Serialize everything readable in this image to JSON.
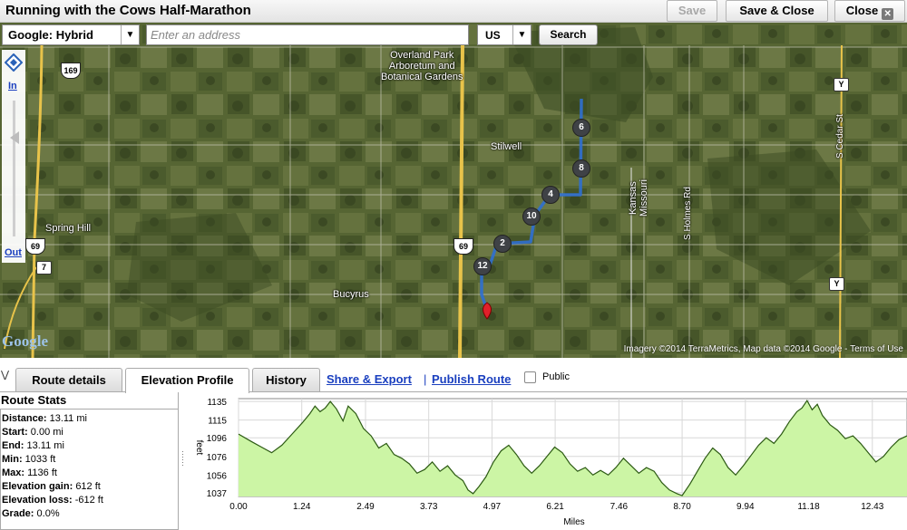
{
  "window": {
    "title": "Running with the Cows Half-Marathon",
    "save_label": "Save",
    "save_close_label": "Save & Close",
    "close_label": "Close",
    "close_icon_glyph": "✕"
  },
  "map_toolbar": {
    "map_type": "Google: Hybrid",
    "address_placeholder": "Enter an address",
    "address_value": "",
    "region": "US",
    "search_label": "Search",
    "dropdown_glyph": "▼"
  },
  "zoom": {
    "in_label": "In",
    "out_label": "Out",
    "level_fraction": 0.27
  },
  "map": {
    "place_labels": {
      "overland_park": [
        "Overland Park",
        "Arboretum and",
        "Botanical Gardens"
      ],
      "stilwell": "Stilwell",
      "spring_hill": "Spring Hill",
      "bucyrus": "Bucyrus",
      "missouri": "Missouri",
      "kansas": "Kansas",
      "s_holmes_rd": "S Holmes Rd",
      "s_cedar_st": "S Cedar St"
    },
    "road_shields": {
      "us169": "169",
      "us69_left": "69",
      "us69_mid": "69",
      "k7": "7",
      "y_top": "Y",
      "y_mid": "Y"
    },
    "mile_markers": [
      "2",
      "4",
      "6",
      "8",
      "10",
      "12"
    ],
    "attribution": "Imagery ©2014  TerraMetrics, Map data ©2014  Google - Terms of Use",
    "google_logo": "Google",
    "colors": {
      "route": "#2f6fd0",
      "start_pin": "#e0202a"
    }
  },
  "tabs": {
    "route_details": "Route details",
    "elevation_profile": "Elevation Profile",
    "history": "History",
    "share_export": "Share & Export",
    "separator": "|",
    "publish_route": "Publish Route",
    "public_label": "Public",
    "collapse_glyph": "⋁"
  },
  "stats": {
    "title": "Route Stats",
    "rows": [
      {
        "label": "Distance:",
        "value": "13.11 mi"
      },
      {
        "label": "Start:",
        "value": "0.00 mi"
      },
      {
        "label": "End:",
        "value": "13.11 mi"
      },
      {
        "label": "Min:",
        "value": "1033 ft"
      },
      {
        "label": "Max:",
        "value": "1136 ft"
      },
      {
        "label": "Elevation gain:",
        "value": "612 ft"
      },
      {
        "label": "Elevation loss:",
        "value": "-612 ft"
      },
      {
        "label": "Grade:",
        "value": "0.0%"
      }
    ]
  },
  "chart_data": {
    "type": "area",
    "title": "",
    "xlabel": "Miles",
    "ylabel": "feet",
    "xlim": [
      0,
      13.11
    ],
    "ylim": [
      1033,
      1138
    ],
    "x_ticks": [
      "0.00",
      "1.24",
      "2.49",
      "3.73",
      "4.97",
      "6.21",
      "7.46",
      "8.70",
      "9.94",
      "11.18",
      "12.43"
    ],
    "y_ticks": [
      "1135",
      "1115",
      "1096",
      "1076",
      "1056",
      "1037"
    ],
    "grid": true,
    "fill_color": "#ccf5a5",
    "line_color": "#2c5a13",
    "x": [
      0.0,
      0.25,
      0.45,
      0.65,
      0.85,
      1.05,
      1.25,
      1.4,
      1.5,
      1.6,
      1.7,
      1.8,
      1.92,
      2.05,
      2.15,
      2.3,
      2.45,
      2.6,
      2.75,
      2.9,
      3.05,
      3.2,
      3.35,
      3.5,
      3.65,
      3.8,
      3.95,
      4.1,
      4.25,
      4.4,
      4.5,
      4.6,
      4.72,
      4.85,
      5.0,
      5.15,
      5.3,
      5.45,
      5.6,
      5.75,
      5.9,
      6.05,
      6.2,
      6.35,
      6.5,
      6.65,
      6.8,
      6.95,
      7.1,
      7.25,
      7.4,
      7.55,
      7.7,
      7.85,
      8.0,
      8.15,
      8.3,
      8.45,
      8.6,
      8.7,
      8.85,
      9.0,
      9.15,
      9.3,
      9.45,
      9.6,
      9.75,
      9.9,
      10.05,
      10.2,
      10.35,
      10.5,
      10.65,
      10.8,
      10.95,
      11.05,
      11.15,
      11.25,
      11.35,
      11.45,
      11.6,
      11.75,
      11.9,
      12.05,
      12.2,
      12.35,
      12.5,
      12.65,
      12.8,
      12.95,
      13.11
    ],
    "y": [
      1100,
      1092,
      1086,
      1080,
      1088,
      1100,
      1112,
      1122,
      1130,
      1124,
      1128,
      1135,
      1127,
      1114,
      1130,
      1122,
      1106,
      1098,
      1085,
      1090,
      1078,
      1074,
      1068,
      1058,
      1062,
      1070,
      1060,
      1066,
      1056,
      1050,
      1040,
      1036,
      1044,
      1054,
      1070,
      1082,
      1088,
      1078,
      1066,
      1058,
      1066,
      1076,
      1086,
      1080,
      1068,
      1060,
      1064,
      1056,
      1061,
      1056,
      1064,
      1074,
      1066,
      1058,
      1064,
      1060,
      1048,
      1040,
      1036,
      1034,
      1046,
      1060,
      1074,
      1085,
      1078,
      1064,
      1056,
      1066,
      1077,
      1088,
      1096,
      1090,
      1100,
      1113,
      1124,
      1128,
      1136,
      1126,
      1132,
      1120,
      1110,
      1104,
      1095,
      1098,
      1090,
      1080,
      1070,
      1076,
      1086,
      1094,
      1098
    ]
  }
}
